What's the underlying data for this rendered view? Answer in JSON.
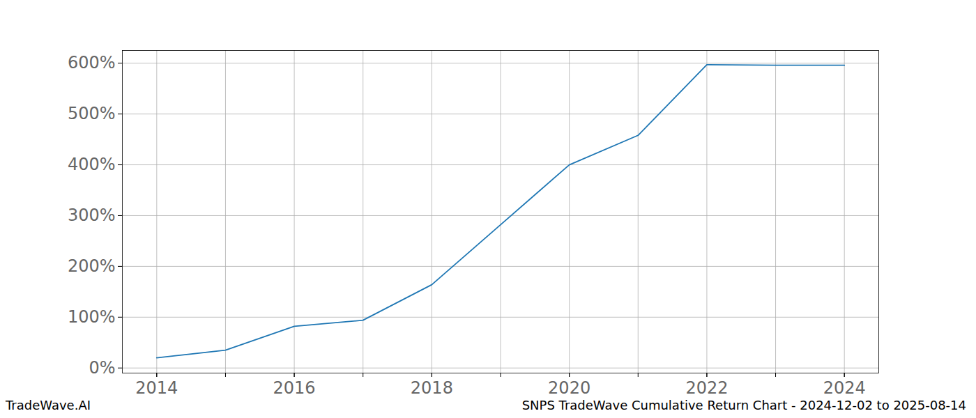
{
  "chart_data": {
    "type": "line",
    "title": "SNPS TradeWave Cumulative Return Chart - 2024-12-02 to 2025-08-14",
    "source": "TradeWave.AI",
    "x": [
      2014,
      2015,
      2016,
      2017,
      2018,
      2019,
      2020,
      2021,
      2022,
      2023,
      2024
    ],
    "values": [
      20,
      35,
      82,
      94,
      164,
      282,
      400,
      458,
      597,
      596,
      596
    ],
    "color": "#1f77b4",
    "xlim": [
      2013.5,
      2024.5
    ],
    "xticks": [
      2014,
      2016,
      2018,
      2020,
      2022,
      2024
    ],
    "ylim": [
      -10,
      625
    ],
    "yticks": [
      {
        "value": 0,
        "label": "0%"
      },
      {
        "value": 100,
        "label": "100%"
      },
      {
        "value": 200,
        "label": "200%"
      },
      {
        "value": 300,
        "label": "300%"
      },
      {
        "value": 400,
        "label": "400%"
      },
      {
        "value": 500,
        "label": "500%"
      },
      {
        "value": 600,
        "label": "600%"
      }
    ],
    "grid": true
  }
}
